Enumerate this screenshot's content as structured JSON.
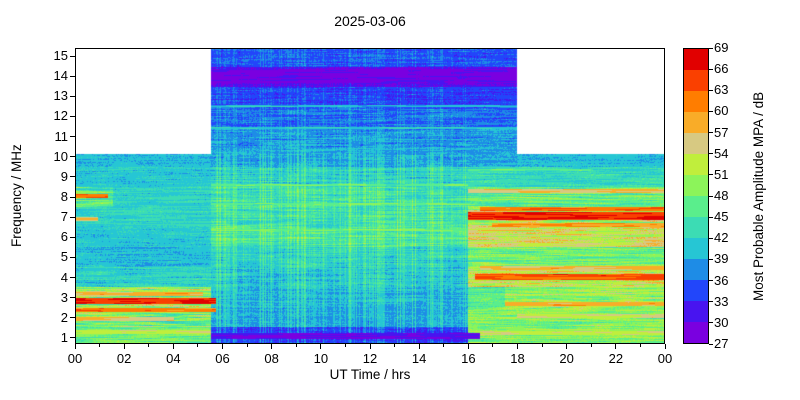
{
  "chart_data": {
    "type": "heatmap",
    "title": "2025-03-06",
    "xlabel": "UT Time / hrs",
    "ylabel": "Frequency / MHz",
    "colorbar_label": "Most Probable Amplitude MPA / dB",
    "x_range_hours": [
      0,
      24
    ],
    "x_tick_labels": [
      "00",
      "02",
      "04",
      "06",
      "08",
      "10",
      "12",
      "14",
      "16",
      "18",
      "20",
      "22",
      "00"
    ],
    "y_range_mhz": [
      1,
      15
    ],
    "y_tick_values": [
      1,
      2,
      3,
      4,
      5,
      6,
      7,
      8,
      9,
      10,
      11,
      12,
      13,
      14,
      15
    ],
    "value_range_db": [
      27,
      69
    ],
    "value_step_db": 3,
    "colorbar_tick_values": [
      27,
      30,
      33,
      36,
      39,
      42,
      45,
      48,
      51,
      54,
      57,
      60,
      63,
      66,
      69
    ],
    "colorbar_band_colors_low_to_high": [
      "#7A00E0",
      "#4814F0",
      "#2246FA",
      "#1E8CE6",
      "#26C6D4",
      "#3CDCB4",
      "#5AEE8C",
      "#8CF45A",
      "#C0EE3C",
      "#D7C982",
      "#F9AC28",
      "#FF7D00",
      "#FA4000",
      "#E10000"
    ],
    "no_data_regions": [
      {
        "t_hours": [
          0,
          5.5
        ],
        "f_mhz": [
          10,
          15
        ]
      },
      {
        "t_hours": [
          18,
          24
        ],
        "f_mhz": [
          10,
          15
        ]
      }
    ],
    "mpa_db_by_freq_row": {
      "15": [
        [
          5.5,
          18,
          35,
          2
        ]
      ],
      "14": [
        [
          5.5,
          18,
          30,
          2
        ]
      ],
      "13": [
        [
          5.5,
          18,
          34,
          2
        ]
      ],
      "12": [
        [
          5.5,
          18,
          36,
          2.5
        ]
      ],
      "11": [
        [
          5.5,
          18,
          38,
          2.5
        ]
      ],
      "10": [
        [
          0,
          5.5,
          40,
          1.5
        ],
        [
          5.5,
          18,
          39,
          2
        ],
        [
          18,
          24,
          40,
          1.5
        ]
      ],
      "9": [
        [
          0,
          5.5,
          41,
          2
        ],
        [
          5.5,
          16,
          42,
          3
        ],
        [
          16,
          24,
          43,
          3
        ]
      ],
      "8": [
        [
          0,
          1.5,
          46,
          6
        ],
        [
          1.5,
          5.5,
          42,
          2.5
        ],
        [
          5.5,
          16,
          44,
          3.5
        ],
        [
          16,
          24,
          47,
          5
        ]
      ],
      "7": [
        [
          0,
          5.5,
          42,
          2.5
        ],
        [
          5.5,
          16,
          44,
          3.5
        ],
        [
          16,
          24,
          52,
          7
        ]
      ],
      "6": [
        [
          0,
          5.5,
          41,
          2
        ],
        [
          5.5,
          16,
          45,
          3.5
        ],
        [
          16,
          24,
          54,
          5
        ]
      ],
      "5": [
        [
          0,
          5.5,
          40,
          2
        ],
        [
          5.5,
          16,
          42,
          3
        ],
        [
          16,
          24,
          48,
          5
        ]
      ],
      "4": [
        [
          0,
          5.5,
          42,
          3
        ],
        [
          5.5,
          16,
          41,
          2.5
        ],
        [
          16,
          24,
          54,
          6
        ]
      ],
      "3": [
        [
          0,
          5.5,
          50,
          8
        ],
        [
          5.5,
          16,
          40,
          2
        ],
        [
          16,
          17.5,
          46,
          4
        ],
        [
          17.5,
          24,
          50,
          5
        ]
      ],
      "2": [
        [
          0,
          5.5,
          48,
          7
        ],
        [
          5.5,
          16,
          39,
          1.5
        ],
        [
          16,
          24,
          49,
          5
        ]
      ],
      "1": [
        [
          0,
          5.5,
          47,
          4
        ],
        [
          5.5,
          16,
          34,
          2
        ],
        [
          16,
          24,
          49,
          4
        ]
      ]
    },
    "spectral_line_features": [
      [
        2.8,
        0,
        5.7,
        66,
        0.16
      ],
      [
        2.35,
        0,
        5.7,
        61,
        0.12
      ],
      [
        3.15,
        0,
        5.2,
        58,
        0.1
      ],
      [
        1.9,
        0,
        4.0,
        56,
        0.08
      ],
      [
        8.05,
        0,
        1.3,
        63,
        0.12
      ],
      [
        6.9,
        0,
        0.9,
        57,
        0.08
      ],
      [
        1.25,
        0,
        5.5,
        53,
        0.1
      ],
      [
        1.05,
        5.5,
        16.5,
        30,
        0.14
      ],
      [
        8.6,
        5.5,
        16,
        47,
        0.07
      ],
      [
        7.65,
        5.5,
        16,
        47,
        0.07
      ],
      [
        6.35,
        5.5,
        16,
        48,
        0.07
      ],
      [
        14.05,
        5.5,
        18,
        29,
        0.33
      ],
      [
        11.45,
        5.5,
        18,
        41,
        0.06
      ],
      [
        12.55,
        5.5,
        18,
        40,
        0.05
      ],
      [
        7.05,
        16,
        24,
        66,
        0.18
      ],
      [
        7.4,
        16.5,
        24,
        62,
        0.12
      ],
      [
        6.6,
        17,
        24,
        60,
        0.1
      ],
      [
        4.0,
        16.3,
        24,
        64,
        0.14
      ],
      [
        4.45,
        16.5,
        24,
        58,
        0.1
      ],
      [
        5.6,
        16,
        24,
        54,
        0.09
      ],
      [
        2.65,
        17.5,
        24,
        58,
        0.11
      ],
      [
        2.05,
        18,
        24,
        55,
        0.09
      ],
      [
        1.2,
        16.5,
        24,
        53,
        0.09
      ],
      [
        9.35,
        16,
        21,
        46,
        0.07
      ],
      [
        8.3,
        16,
        24,
        57,
        0.1
      ]
    ]
  }
}
